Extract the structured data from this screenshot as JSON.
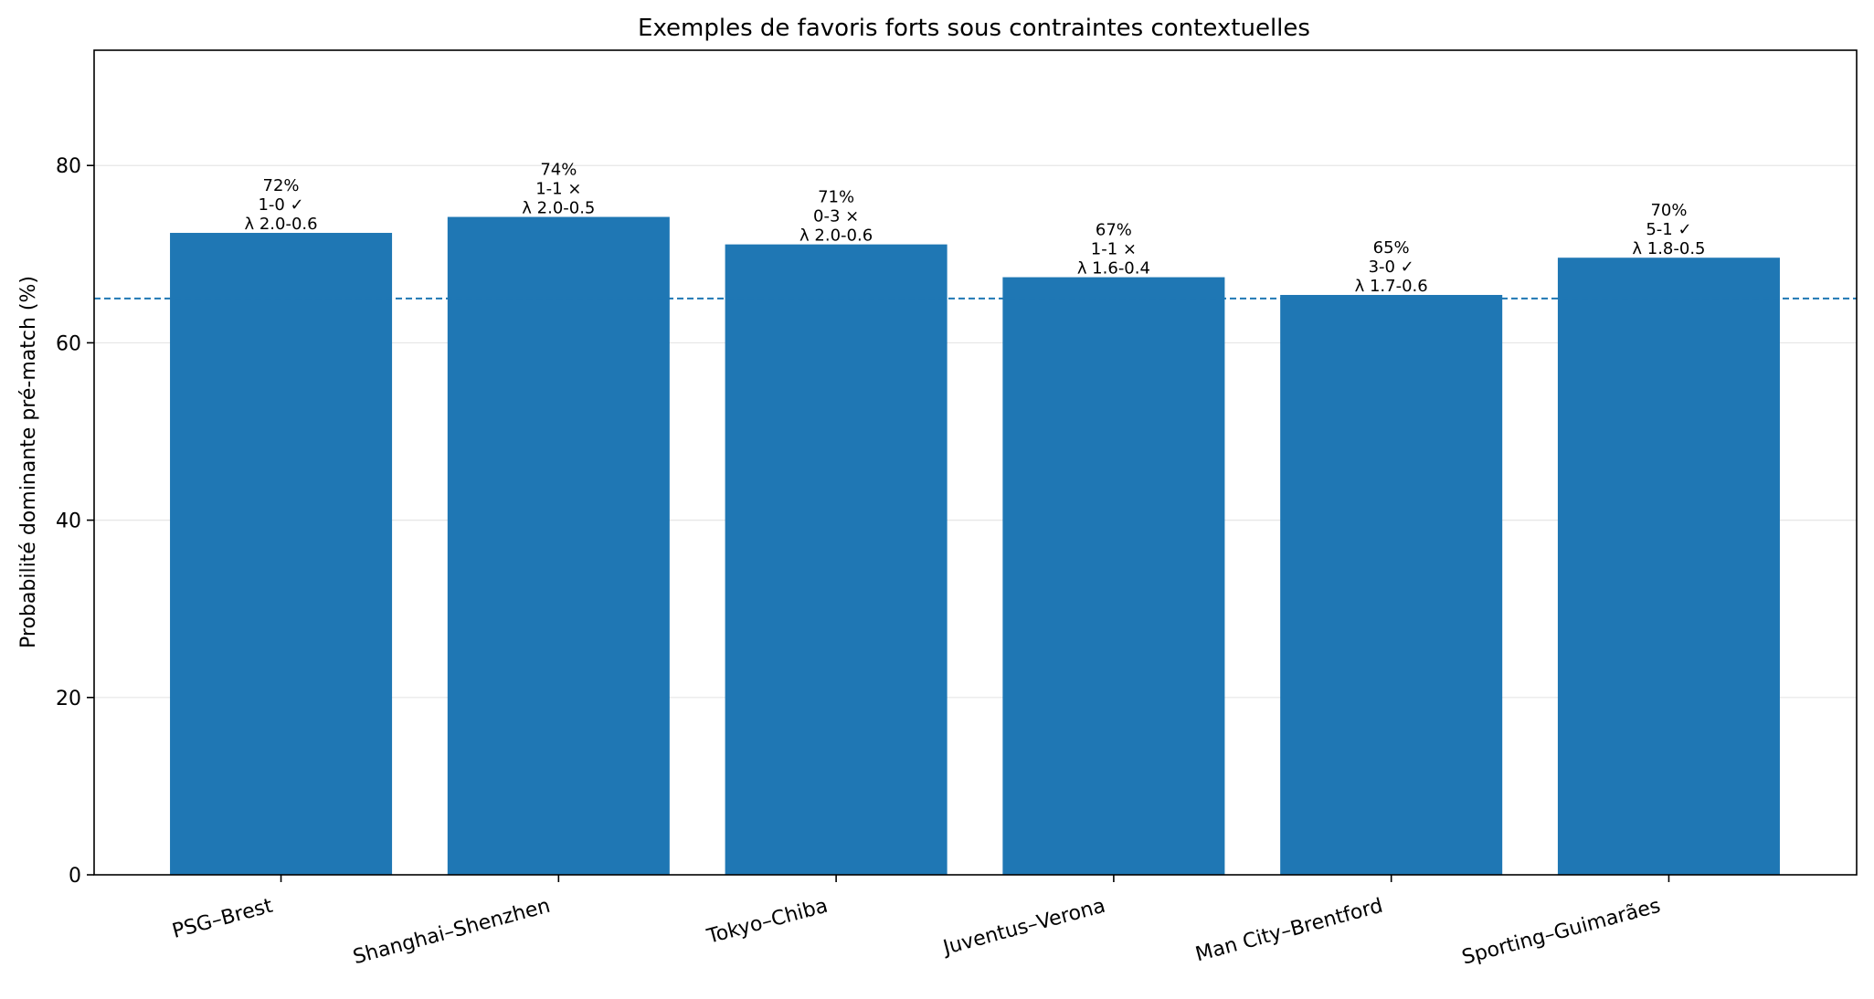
{
  "chart_data": {
    "type": "bar",
    "title": "Exemples de favoris forts sous contraintes contextuelles",
    "xlabel": "",
    "ylabel": "Probabilité dominante pré-match (%)",
    "ylim": [
      0,
      93
    ],
    "yticks": [
      0,
      20,
      40,
      60,
      80
    ],
    "grid": "horizontal",
    "colors": {
      "bar": "#1f77b4",
      "reference_line": "#1f77b4",
      "grid": "#e6e6e6"
    },
    "reference_line": {
      "value": 65,
      "style": "dashed"
    },
    "categories": [
      "PSG–Brest",
      "Shanghai–Shenzhen",
      "Tokyo–Chiba",
      "Juventus–Verona",
      "Man City–Brentford",
      "Sporting–Guimarães"
    ],
    "values": [
      72.4,
      74.2,
      71.1,
      67.4,
      65.4,
      69.6
    ],
    "bar_labels": [
      [
        "72%",
        "1-0 ✓",
        "λ 2.0-0.6"
      ],
      [
        "74%",
        "1-1 ×",
        "λ 2.0-0.5"
      ],
      [
        "71%",
        "0-3 ×",
        "λ 2.0-0.6"
      ],
      [
        "67%",
        "1-1 ×",
        "λ 1.6-0.4"
      ],
      [
        "65%",
        "3-0 ✓",
        "λ 1.7-0.6"
      ],
      [
        "70%",
        "5-1 ✓",
        "λ 1.8-0.5"
      ]
    ]
  }
}
